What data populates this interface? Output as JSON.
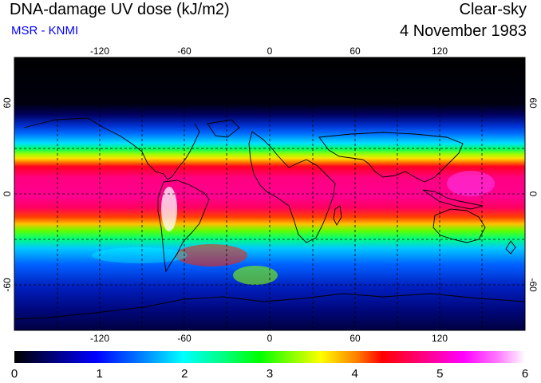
{
  "header": {
    "title": "DNA-damage UV dose (kJ/m2)",
    "subtitle": "MSR - KNMI",
    "subtitle_color": "#0000ff",
    "condition": "Clear-sky",
    "date": "4 November 1983"
  },
  "map": {
    "projection": "equirectangular",
    "graticule": "dashed",
    "lon_ticks": [
      "-120",
      "-60",
      "0",
      "60",
      "120"
    ],
    "lat_ticks": [
      "60",
      "0",
      "-60"
    ],
    "lat_ticks_rotated_right": [
      "60",
      "0",
      "-60"
    ]
  },
  "colorbar": {
    "labels": [
      "0",
      "1",
      "2",
      "3",
      "4",
      "5",
      "6"
    ],
    "min": 0,
    "max": 6,
    "colors": [
      "#000000",
      "#000080",
      "#0000ff",
      "#0080ff",
      "#00ffff",
      "#00ff80",
      "#00ff00",
      "#80ff00",
      "#ffff00",
      "#ff8000",
      "#ff0000",
      "#ff0080",
      "#ff00ff",
      "#ff80ff",
      "#ffffff"
    ]
  }
}
